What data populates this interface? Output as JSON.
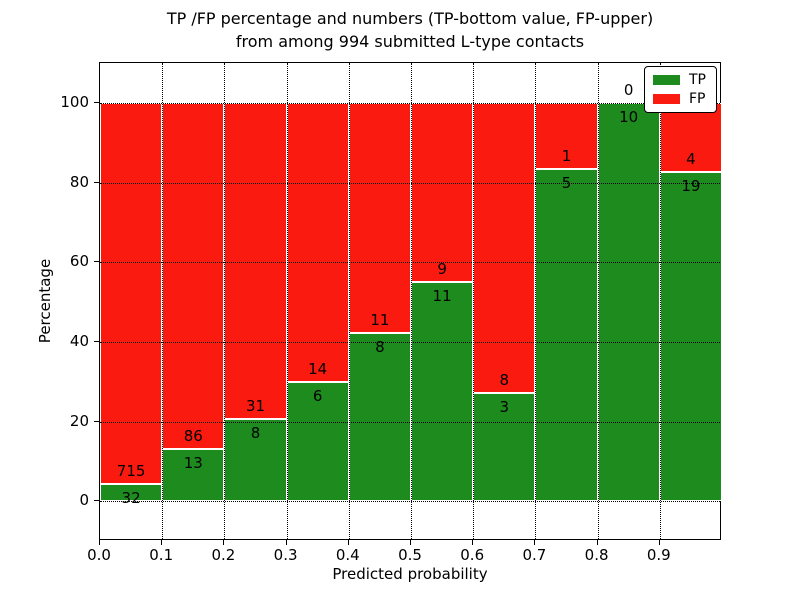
{
  "chart_data": {
    "type": "bar",
    "stacked": true,
    "title_line1": "TP /FP percentage and numbers (TP-bottom value, FP-upper)",
    "title_line2": "from among 994 submitted L-type contacts",
    "xlabel": "Predicted probability",
    "ylabel": "Percentage",
    "total_contacts": 994,
    "xlim": [
      0.0,
      1.0
    ],
    "ylim": [
      -10,
      110
    ],
    "bin_width": 0.1,
    "bin_starts": [
      0.0,
      0.1,
      0.2,
      0.3,
      0.4,
      0.5,
      0.6,
      0.7,
      0.8,
      0.9
    ],
    "x_tick_values": [
      0.0,
      0.1,
      0.2,
      0.3,
      0.4,
      0.5,
      0.6,
      0.7,
      0.8,
      0.9
    ],
    "x_tick_labels": [
      "0.0",
      "0.1",
      "0.2",
      "0.3",
      "0.4",
      "0.5",
      "0.6",
      "0.7",
      "0.8",
      "0.9"
    ],
    "y_tick_values": [
      0,
      20,
      40,
      60,
      80,
      100
    ],
    "y_tick_labels": [
      "0",
      "20",
      "40",
      "60",
      "80",
      "100"
    ],
    "grid": true,
    "series": [
      {
        "name": "TP",
        "color": "#1e8b1e",
        "counts": [
          32,
          13,
          8,
          6,
          8,
          11,
          3,
          5,
          10,
          19
        ]
      },
      {
        "name": "FP",
        "color": "#fa1a10",
        "counts": [
          715,
          86,
          31,
          14,
          11,
          9,
          8,
          1,
          0,
          4
        ]
      }
    ],
    "tp_percent": [
      4.28,
      13.13,
      20.51,
      30.0,
      42.11,
      55.0,
      27.27,
      83.33,
      100.0,
      82.61
    ],
    "legend": {
      "position": "upper right",
      "entries": [
        {
          "label": "TP",
          "color": "#1e8b1e"
        },
        {
          "label": "FP",
          "color": "#fa1a10"
        }
      ]
    }
  }
}
